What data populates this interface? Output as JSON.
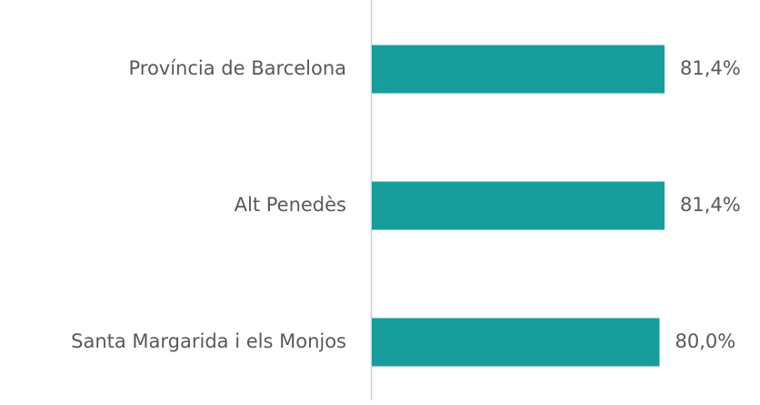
{
  "chart_data": {
    "type": "hbar",
    "categories": [
      "Província de Barcelona",
      "Alt Penedès",
      "Santa Margarida i els Monjos"
    ],
    "values": [
      81.4,
      81.4,
      80.0
    ],
    "value_labels": [
      "81,4%",
      "81,4%",
      "80,0%"
    ],
    "color": "#179e9c",
    "xlim": [
      0,
      100
    ]
  }
}
